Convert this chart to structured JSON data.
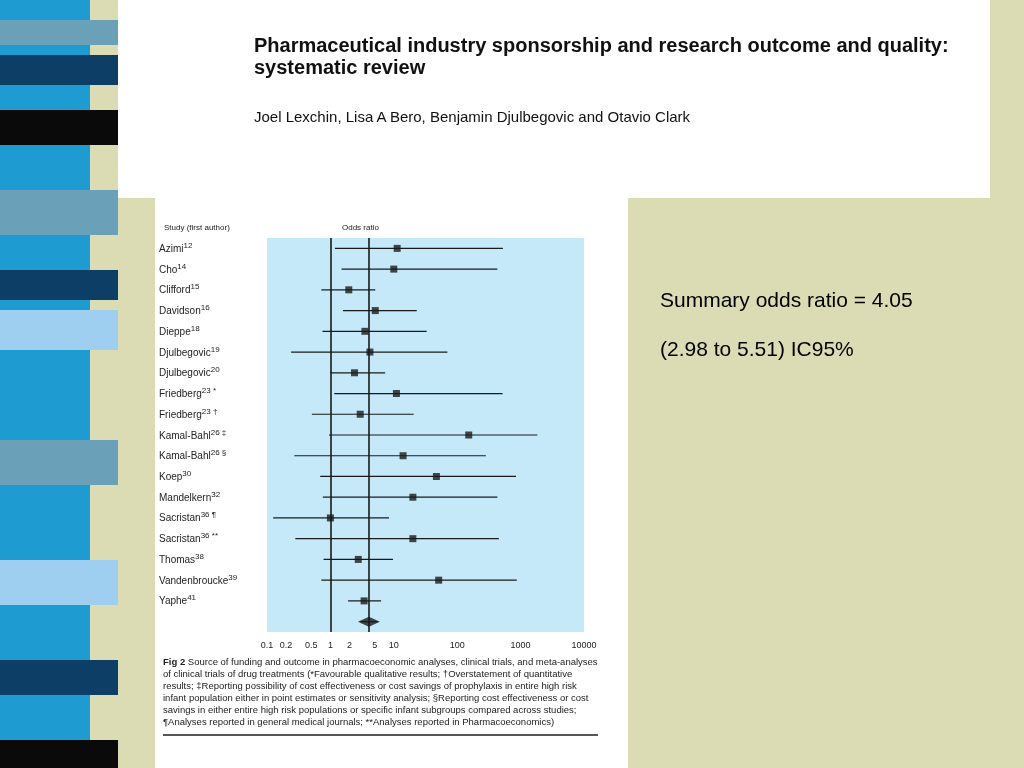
{
  "chart_data": {
    "type": "scatter",
    "title": "Pharmaceutical industry sponsorship and research outcome and quality: systematic review",
    "subtitle": "Joel Lexchin, Lisa A Bero, Benjamin Djulbegovic and Otavio Clark",
    "xlabel": "Odds ratio",
    "orientation": "horizontal",
    "log": "x",
    "categories": [
      "Azimi$^{12}$",
      "Cho$^{14}$",
      "Clifford$^{15}$",
      "Davidson$^{16}$",
      "Dieppe$^{18}$",
      "Djulbegovic$^{19}$",
      "Djulbegovic$^{20}$",
      "Friedberg$^{23 *}$",
      "Friedberg$^{23 †}$",
      "Kamal-Bahl$^{26 ‡}$",
      "Kamal-Bahl$^{26 §}$",
      "Koep$^{30}$",
      "Mandelkern$^{32}$",
      "Sacristan$^{36 ¶}$",
      "Sacristan$^{36 **}$",
      "Thomas$^{38}$",
      "Vandenbroucke$^{39}$",
      "Yaphe$^{41}$",
      null
    ],
    "series": [
      {
        "color": "#1a1a1a",
        "marker": "square",
        "values": [
          11.3,
          10,
          1.95,
          5.1,
          3.5,
          4.2,
          2.4,
          11,
          2.95,
          152,
          14,
          47,
          20,
          1.0,
          20,
          2.75,
          51,
          3.4,
          null
        ],
        "errors": [
          [
            1.18,
            526
          ],
          [
            1.5,
            430
          ],
          [
            0.72,
            5.1
          ],
          [
            1.58,
            23
          ],
          [
            0.75,
            33
          ],
          [
            0.24,
            70
          ],
          [
            1.0,
            7.3
          ],
          [
            1.15,
            520
          ],
          [
            0.51,
            20.6
          ],
          [
            0.95,
            1840
          ],
          [
            0.27,
            283
          ],
          [
            0.69,
            847
          ],
          [
            0.76,
            430
          ],
          [
            0.125,
            8.4
          ],
          [
            0.28,
            454
          ],
          [
            0.78,
            9.7
          ],
          [
            0.72,
            870
          ],
          [
            1.9,
            6.3
          ],
          null
        ]
      },
      {
        "color": "#1a1a1a",
        "marker": "diamond",
        "values": [
          null,
          null,
          null,
          null,
          null,
          null,
          null,
          null,
          null,
          null,
          null,
          null,
          null,
          null,
          null,
          null,
          null,
          null,
          4.05
        ],
        "errors": [
          null,
          null,
          null,
          null,
          null,
          null,
          null,
          null,
          null,
          null,
          null,
          null,
          null,
          null,
          null,
          null,
          null,
          null,
          [
            2.98,
            5.51
          ]
        ]
      }
    ],
    "xlim": [
      0.1,
      10000
    ],
    "xticks": [
      0.1,
      0.2,
      0.5,
      1,
      2,
      5,
      10,
      100,
      1000,
      10000
    ],
    "ref_lines": [
      {
        "axis": "x",
        "value": 1,
        "color": "#1a1a1a"
      },
      {
        "axis": "x",
        "value": 4.05,
        "color": "#1a1a1a"
      }
    ],
    "grid": false,
    "annotations": [
      "Study (first author)",
      "Fig 2 Source of funding and outcome in pharmacoeconomic analyses, clinical trials, and meta-analyses of clinical trials of drug treatments (*Favourable qualitative results; †Overstatement of quantitative results; ‡Reporting possibility of cost effectiveness or cost savings of prophylaxis in entire high risk infant population either in point estimates or sensitivity analysis; §Reporting cost effectiveness or cost savings in either entire high risk populations or specific infant subgroups compared across studies; ¶Analyses reported in general medical journals; **Analyses reported in Pharmacoeconomics)",
      "Summary odds ratio = 4.05",
      "(2.98 to 5.51) IC95%"
    ]
  }
}
